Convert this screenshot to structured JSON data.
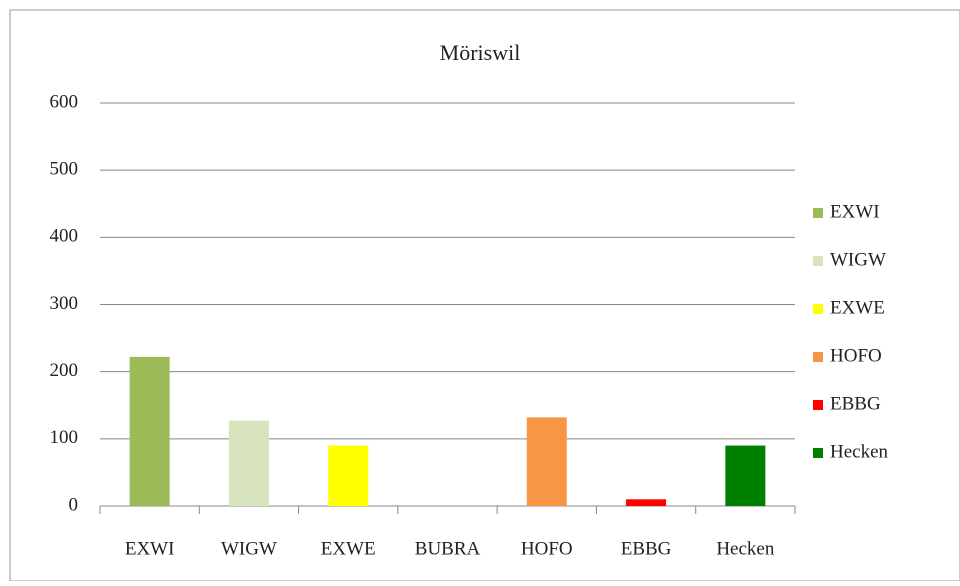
{
  "chart_data": {
    "type": "bar",
    "title": "Möriswil",
    "categories": [
      "EXWI",
      "WIGW",
      "EXWE",
      "BUBRA",
      "HOFO",
      "EBBG",
      "Hecken"
    ],
    "series": [
      {
        "name": "EXWI",
        "color": "#9bbb59",
        "values": [
          222,
          null,
          null,
          null,
          null,
          null,
          null
        ]
      },
      {
        "name": "WIGW",
        "color": "#d7e4bd",
        "values": [
          null,
          127,
          null,
          null,
          null,
          null,
          null
        ]
      },
      {
        "name": "EXWE",
        "color": "#ffff00",
        "values": [
          null,
          null,
          90,
          null,
          null,
          null,
          null
        ]
      },
      {
        "name": "HOFO",
        "color": "#f79646",
        "values": [
          null,
          null,
          null,
          null,
          132,
          null,
          null
        ]
      },
      {
        "name": "EBBG",
        "color": "#ff0000",
        "values": [
          null,
          null,
          null,
          null,
          null,
          10,
          null
        ]
      },
      {
        "name": "Hecken",
        "color": "#008000",
        "values": [
          null,
          null,
          null,
          null,
          null,
          null,
          90
        ]
      }
    ],
    "ylim": [
      0,
      600
    ],
    "yticks": [
      0,
      100,
      200,
      300,
      400,
      500,
      600
    ],
    "grid": true,
    "legend": "right"
  }
}
